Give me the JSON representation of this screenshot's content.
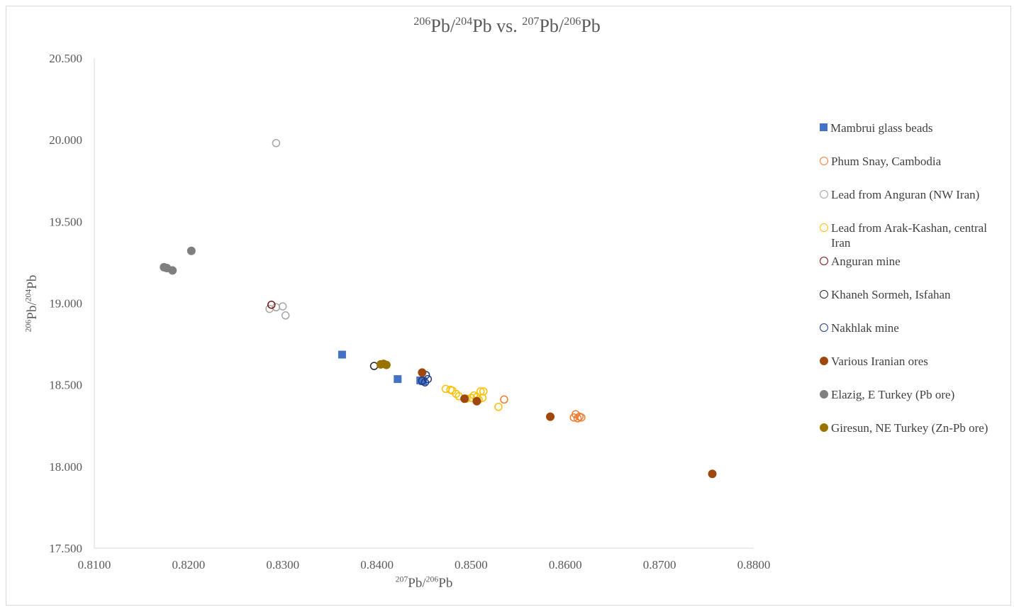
{
  "chart_data": {
    "type": "scatter",
    "title": {
      "base1": "Pb/",
      "sup1": "206",
      "sup2": "204",
      "mid": "Pb vs. ",
      "sup3": "207",
      "base2": "Pb/",
      "sup4": "206",
      "end": "Pb"
    },
    "xlabel": {
      "sup1": "207",
      "base1": "Pb/",
      "sup2": "206",
      "base2": "Pb"
    },
    "ylabel": {
      "sup1": "206",
      "base1": "Pb/",
      "sup2": "204",
      "base2": "Pb"
    },
    "xlim": [
      0.81,
      0.88
    ],
    "ylim": [
      17.5,
      20.5
    ],
    "x_ticks": [
      "0.8100",
      "0.8200",
      "0.8300",
      "0.8400",
      "0.8500",
      "0.8600",
      "0.8700",
      "0.8800"
    ],
    "y_ticks": [
      "17.500",
      "18.000",
      "18.500",
      "19.000",
      "19.500",
      "20.000",
      "20.500"
    ],
    "grid": false,
    "legend_position": "right",
    "series": [
      {
        "name": "Mambrui glass beads",
        "marker": "square",
        "fill": true,
        "color": "#4472c4",
        "points": [
          [
            0.8363,
            18.685
          ],
          [
            0.8422,
            18.535
          ],
          [
            0.8446,
            18.527
          ],
          [
            0.8449,
            18.522
          ]
        ]
      },
      {
        "name": "Phum Snay, Cambodia",
        "marker": "circle",
        "fill": false,
        "color": "#ed7d31",
        "points": [
          [
            0.8535,
            18.41
          ],
          [
            0.8609,
            18.3
          ],
          [
            0.8611,
            18.32
          ],
          [
            0.8613,
            18.295
          ],
          [
            0.8615,
            18.305
          ],
          [
            0.8617,
            18.3
          ]
        ]
      },
      {
        "name": "Lead from Anguran (NW Iran)",
        "marker": "circle",
        "fill": false,
        "color": "#a5a5a5",
        "points": [
          [
            0.8293,
            19.98
          ],
          [
            0.8286,
            18.965
          ],
          [
            0.8293,
            18.975
          ],
          [
            0.83,
            18.98
          ],
          [
            0.8303,
            18.925
          ]
        ]
      },
      {
        "name": "Lead from Arak-Kashan, central Iran",
        "marker": "circle",
        "fill": false,
        "color": "#ffc000",
        "points": [
          [
            0.8473,
            18.475
          ],
          [
            0.8478,
            18.47
          ],
          [
            0.848,
            18.465
          ],
          [
            0.8484,
            18.445
          ],
          [
            0.8487,
            18.43
          ],
          [
            0.8495,
            18.415
          ],
          [
            0.85,
            18.42
          ],
          [
            0.8503,
            18.435
          ],
          [
            0.8506,
            18.425
          ],
          [
            0.8508,
            18.41
          ],
          [
            0.851,
            18.46
          ],
          [
            0.8512,
            18.42
          ],
          [
            0.8513,
            18.46
          ],
          [
            0.8529,
            18.365
          ]
        ]
      },
      {
        "name": "Anguran mine",
        "marker": "circle",
        "fill": false,
        "color": "#7b1113",
        "points": [
          [
            0.8288,
            18.99
          ]
        ]
      },
      {
        "name": "Khaneh Sormeh, Isfahan",
        "marker": "circle",
        "fill": false,
        "color": "#262626",
        "points": [
          [
            0.8397,
            18.615
          ]
        ]
      },
      {
        "name": "Nakhlak mine",
        "marker": "circle",
        "fill": false,
        "color": "#1f3c88",
        "points": [
          [
            0.8448,
            18.525
          ],
          [
            0.8451,
            18.515
          ],
          [
            0.8452,
            18.56
          ],
          [
            0.8454,
            18.535
          ]
        ]
      },
      {
        "name": "Various Iranian ores",
        "marker": "circle",
        "fill": true,
        "color": "#9e480e",
        "points": [
          [
            0.8448,
            18.575
          ],
          [
            0.8493,
            18.415
          ],
          [
            0.8506,
            18.4
          ],
          [
            0.8584,
            18.305
          ],
          [
            0.8756,
            17.955
          ]
        ]
      },
      {
        "name": "Elazig, E Turkey (Pb ore)",
        "marker": "circle",
        "fill": true,
        "color": "#7f7f7f",
        "points": [
          [
            0.8174,
            19.22
          ],
          [
            0.8177,
            19.215
          ],
          [
            0.8183,
            19.2
          ],
          [
            0.8203,
            19.32
          ]
        ]
      },
      {
        "name": "Giresun, NE Turkey (Zn-Pb ore)",
        "marker": "circle",
        "fill": true,
        "color": "#997300",
        "points": [
          [
            0.8404,
            18.625
          ],
          [
            0.8407,
            18.628
          ],
          [
            0.841,
            18.622
          ]
        ]
      }
    ]
  }
}
